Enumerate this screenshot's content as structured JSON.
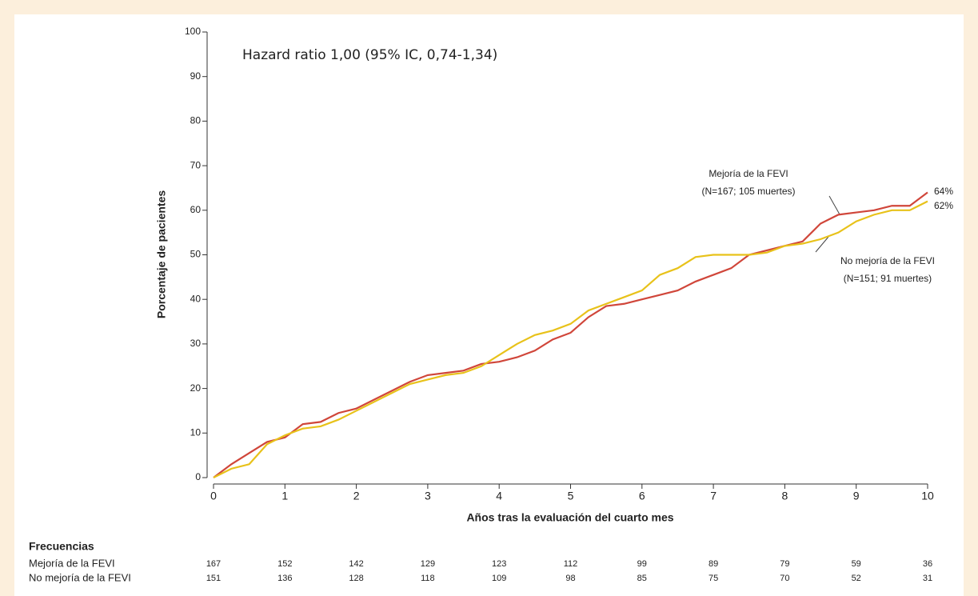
{
  "chart_data": {
    "type": "line",
    "annotation": "Hazard ratio 1,00 (95% IC, 0,74-1,34)",
    "xlabel": "Años tras la evaluación del cuarto mes",
    "ylabel": "Porcentaje de pacientes",
    "xlim": [
      0,
      10
    ],
    "xticks": [
      0,
      1,
      2,
      3,
      4,
      5,
      6,
      7,
      8,
      9,
      10
    ],
    "ylim": [
      0,
      100
    ],
    "yticks": [
      0,
      10,
      20,
      30,
      40,
      50,
      60,
      70,
      80,
      90,
      100
    ],
    "x": [
      0,
      0.25,
      0.5,
      0.75,
      1,
      1.25,
      1.5,
      1.75,
      2,
      2.25,
      2.5,
      2.75,
      3,
      3.25,
      3.5,
      3.75,
      4,
      4.25,
      4.5,
      4.75,
      5,
      5.25,
      5.5,
      5.75,
      6,
      6.25,
      6.5,
      6.75,
      7,
      7.25,
      7.5,
      7.75,
      8,
      8.25,
      8.5,
      8.75,
      9,
      9.25,
      9.5,
      9.75,
      10
    ],
    "series": [
      {
        "name": "Mejoría de la FEVI",
        "color": "#d0463a",
        "values": [
          0,
          3,
          5.5,
          8,
          9,
          12,
          12.5,
          14.5,
          15.5,
          17.5,
          19.5,
          21.5,
          23,
          23.5,
          24,
          25.5,
          26,
          27,
          28.5,
          31,
          32.5,
          36,
          38.5,
          39,
          40,
          41,
          42,
          44,
          45.5,
          47,
          50,
          51,
          52,
          53,
          57,
          59,
          59.5,
          60,
          61,
          61,
          64
        ],
        "labels": [
          "Mejoría de la FEVI",
          "(N=167; 105 muertes)"
        ],
        "end_label": "64%"
      },
      {
        "name": "No mejoría de la FEVI",
        "color": "#e8c21a",
        "values": [
          0,
          2,
          3,
          7.5,
          9.5,
          11,
          11.5,
          13,
          15,
          17,
          19,
          21,
          22,
          23,
          23.5,
          25,
          27.5,
          30,
          32,
          33,
          34.5,
          37.5,
          39,
          40.5,
          42,
          45.5,
          47,
          49.5,
          50,
          50,
          50,
          50.5,
          52,
          52.5,
          53.5,
          55,
          57.5,
          59,
          60,
          60,
          62
        ],
        "labels": [
          "No mejoría de la FEVI",
          "(N=151; 91 muertes)"
        ],
        "end_label": "62%"
      }
    ],
    "risk_table": {
      "title": "Frecuencias",
      "rows": [
        {
          "name": "Mejoría de la FEVI",
          "values": [
            167,
            152,
            142,
            129,
            123,
            112,
            99,
            89,
            79,
            59,
            36
          ]
        },
        {
          "name": "No mejoría de la FEVI",
          "values": [
            151,
            136,
            128,
            118,
            109,
            98,
            85,
            75,
            70,
            52,
            31
          ]
        }
      ]
    }
  }
}
